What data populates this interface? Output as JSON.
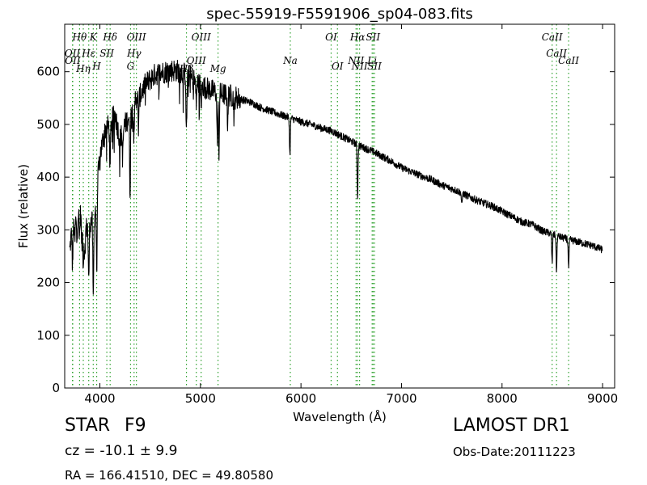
{
  "chart_data": {
    "type": "line",
    "title": "spec-55919-F5591906_sp04-083.fits",
    "xlabel": "Wavelength (Å)",
    "ylabel": "Flux (relative)",
    "xlim": [
      3650,
      9120
    ],
    "ylim": [
      0,
      690
    ],
    "xticks": [
      4000,
      5000,
      6000,
      7000,
      8000,
      9000
    ],
    "yticks": [
      0,
      100,
      200,
      300,
      400,
      500,
      600
    ],
    "grid": false,
    "legend": "none",
    "line_color": "#000000",
    "marker_color": "#2ca02c",
    "continuum": [
      [
        3700,
        260
      ],
      [
        3720,
        300
      ],
      [
        3760,
        320
      ],
      [
        3800,
        340
      ],
      [
        3850,
        300
      ],
      [
        3900,
        310
      ],
      [
        3950,
        330
      ],
      [
        4000,
        440
      ],
      [
        4050,
        490
      ],
      [
        4100,
        500
      ],
      [
        4150,
        520
      ],
      [
        4200,
        470
      ],
      [
        4250,
        500
      ],
      [
        4300,
        520
      ],
      [
        4350,
        550
      ],
      [
        4400,
        555
      ],
      [
        4450,
        575
      ],
      [
        4500,
        585
      ],
      [
        4550,
        595
      ],
      [
        4600,
        598
      ],
      [
        4650,
        600
      ],
      [
        4700,
        602
      ],
      [
        4750,
        603
      ],
      [
        4800,
        600
      ],
      [
        4850,
        595
      ],
      [
        4900,
        590
      ],
      [
        4950,
        582
      ],
      [
        5000,
        575
      ],
      [
        5100,
        565
      ],
      [
        5200,
        558
      ],
      [
        5300,
        555
      ],
      [
        5400,
        548
      ],
      [
        5500,
        542
      ],
      [
        5600,
        532
      ],
      [
        5700,
        525
      ],
      [
        5800,
        518
      ],
      [
        5900,
        512
      ],
      [
        6000,
        505
      ],
      [
        6100,
        500
      ],
      [
        6200,
        493
      ],
      [
        6300,
        488
      ],
      [
        6400,
        478
      ],
      [
        6500,
        468
      ],
      [
        6600,
        458
      ],
      [
        6700,
        450
      ],
      [
        6800,
        440
      ],
      [
        6900,
        430
      ],
      [
        7000,
        418
      ],
      [
        7100,
        410
      ],
      [
        7200,
        402
      ],
      [
        7300,
        395
      ],
      [
        7400,
        385
      ],
      [
        7500,
        378
      ],
      [
        7600,
        370
      ],
      [
        7700,
        360
      ],
      [
        7800,
        352
      ],
      [
        7900,
        345
      ],
      [
        8000,
        335
      ],
      [
        8100,
        325
      ],
      [
        8200,
        315
      ],
      [
        8300,
        310
      ],
      [
        8400,
        298
      ],
      [
        8500,
        292
      ],
      [
        8600,
        285
      ],
      [
        8700,
        280
      ],
      [
        8800,
        275
      ],
      [
        8900,
        270
      ],
      [
        9000,
        262
      ]
    ],
    "absorption_features": [
      [
        3728,
        70
      ],
      [
        3750,
        40
      ],
      [
        3771,
        45
      ],
      [
        3798,
        50
      ],
      [
        3820,
        55
      ],
      [
        3835,
        80
      ],
      [
        3850,
        60
      ],
      [
        3889,
        110
      ],
      [
        3934,
        160
      ],
      [
        3968,
        140
      ],
      [
        4101,
        90
      ],
      [
        4227,
        50
      ],
      [
        4300,
        150
      ],
      [
        4340,
        80
      ],
      [
        4383,
        60
      ],
      [
        4861,
        110
      ],
      [
        4958,
        40
      ],
      [
        5007,
        40
      ],
      [
        5167,
        90
      ],
      [
        5184,
        110
      ],
      [
        5270,
        50
      ],
      [
        5335,
        40
      ],
      [
        5890,
        70
      ],
      [
        6563,
        100
      ],
      [
        7600,
        25
      ],
      [
        8498,
        55
      ],
      [
        8542,
        65
      ],
      [
        8662,
        55
      ]
    ],
    "noise_amplitude": 10,
    "lines": [
      {
        "label": "OII",
        "x": 3727,
        "row": 1
      },
      {
        "label": "OII",
        "x": 3730,
        "row": 2
      },
      {
        "label": "Hθ",
        "x": 3798,
        "row": 0
      },
      {
        "label": "Hη",
        "x": 3835,
        "row": 3
      },
      {
        "label": "K",
        "x": 3934,
        "row": 0
      },
      {
        "label": "Hε",
        "x": 3889,
        "row": 1
      },
      {
        "label": "H",
        "x": 3968,
        "row": 4
      },
      {
        "label": "SII",
        "x": 4069,
        "row": 1
      },
      {
        "label": "Hδ",
        "x": 4102,
        "row": 0
      },
      {
        "label": "OIII",
        "x": 4363,
        "row": 0
      },
      {
        "label": "Hγ",
        "x": 4340,
        "row": 1
      },
      {
        "label": "G",
        "x": 4305,
        "row": 4
      },
      {
        "label": "Hβ",
        "x": 4861,
        "row": 3
      },
      {
        "label": "OIII",
        "x": 5007,
        "row": 0
      },
      {
        "label": "OIII",
        "x": 4959,
        "row": 2
      },
      {
        "label": "Mg",
        "x": 5175,
        "row": 3
      },
      {
        "label": "Na",
        "x": 5894,
        "row": 2
      },
      {
        "label": "OI",
        "x": 6300,
        "row": 0
      },
      {
        "label": "OI",
        "x": 6363,
        "row": 4
      },
      {
        "label": "Hα",
        "x": 6563,
        "row": 0
      },
      {
        "label": "NII",
        "x": 6548,
        "row": 2
      },
      {
        "label": "NII",
        "x": 6583,
        "row": 4
      },
      {
        "label": "SII",
        "x": 6717,
        "row": 0
      },
      {
        "label": "Li",
        "x": 6708,
        "row": 2
      },
      {
        "label": "SII",
        "x": 6731,
        "row": 4
      },
      {
        "label": "CaII",
        "x": 8498,
        "row": 0
      },
      {
        "label": "CaII",
        "x": 8542,
        "row": 1
      },
      {
        "label": "CaII",
        "x": 8662,
        "row": 2
      }
    ]
  },
  "info": {
    "class": "STAR",
    "subclass": "F9",
    "survey": "LAMOST DR1",
    "cz": "cz = -10.1 ± 9.9",
    "obs_date": "Obs-Date:20111223",
    "coords": "RA = 166.41510, DEC = 49.80580"
  }
}
